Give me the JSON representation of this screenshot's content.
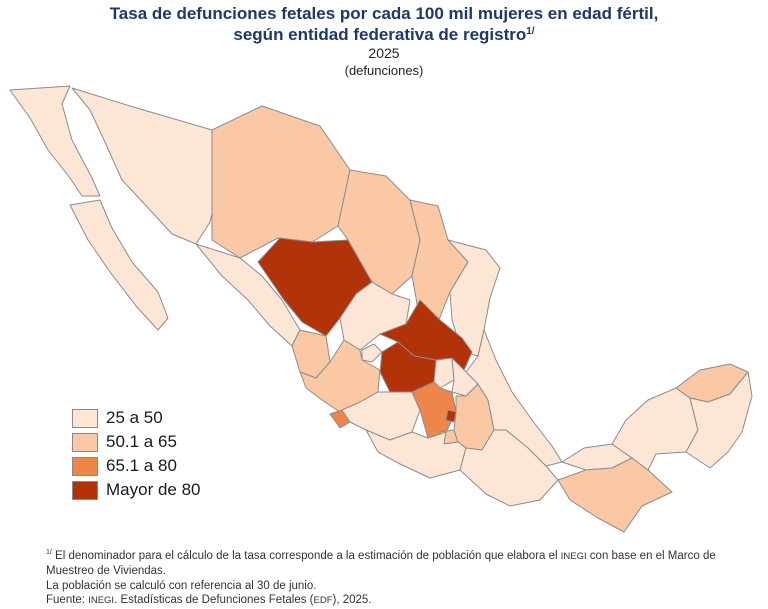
{
  "title": {
    "line1": "Tasa de defunciones fetales por cada 100 mil mujeres en edad fértil,",
    "line2": "según entidad federativa de registro",
    "superscript": "1/"
  },
  "year": "2025",
  "unit": "(defunciones)",
  "colors": {
    "c1": "#fde6d6",
    "c2": "#fac8a4",
    "c3": "#ef8649",
    "c4": "#b23209",
    "border": "#8c8c8c"
  },
  "legend": [
    {
      "label": "25 a 50",
      "color": "#fde6d6"
    },
    {
      "label": "50.1 a 65",
      "color": "#fac8a4"
    },
    {
      "label": "65.1 a 80",
      "color": "#ef8649"
    },
    {
      "label": "Mayor de 80",
      "color": "#b23209"
    }
  ],
  "notes": {
    "footnote_mark": "1/",
    "line1_pre": " El denominador para el cálculo de la tasa corresponde a la estimación de población que elabora el ",
    "inegi": "INEGI",
    "line1_post": " con base en el Marco de Muestreo de Viviendas.",
    "line2": "La población se calculó con referencia al 30 de junio.",
    "source_pre": "Fuente: ",
    "source_inegi": "INEGI",
    "source_mid": ". Estadísticas de Defunciones Fetales (",
    "source_edf": "EDF",
    "source_post": "), 2025."
  }
}
